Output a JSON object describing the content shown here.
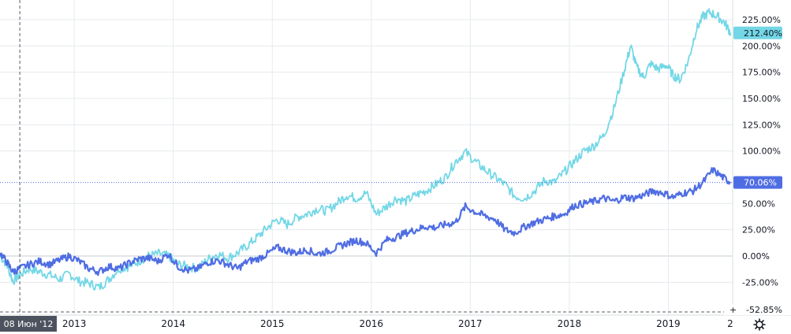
{
  "chart_data": {
    "type": "line",
    "y_unit": "%",
    "ylim": [
      -52.85,
      237
    ],
    "y_ticks": [
      {
        "value": 225,
        "label": "225.00%"
      },
      {
        "value": 200,
        "label": "200.00%"
      },
      {
        "value": 175,
        "label": "175.00%"
      },
      {
        "value": 150,
        "label": "150.00%"
      },
      {
        "value": 125,
        "label": "125.00%"
      },
      {
        "value": 100,
        "label": "100.00%"
      },
      {
        "value": 50,
        "label": "50.00%"
      },
      {
        "value": 25,
        "label": "25.00%"
      },
      {
        "value": 0,
        "label": "0.00%"
      },
      {
        "value": -25,
        "label": "-25.00%"
      }
    ],
    "x_ticks": [
      {
        "value": 2013.0,
        "label": "2013"
      },
      {
        "value": 2014.0,
        "label": "2014"
      },
      {
        "value": 2015.0,
        "label": "2015"
      },
      {
        "value": 2016.0,
        "label": "2016"
      },
      {
        "value": 2017.0,
        "label": "2017"
      },
      {
        "value": 2018.0,
        "label": "2018"
      },
      {
        "value": 2019.0,
        "label": "2019"
      }
    ],
    "xlim": [
      2012.25,
      2019.65
    ],
    "grid": true,
    "series": [
      {
        "color": "#73d7e6",
        "last_label": "212.40%",
        "last_value": 212.4,
        "points": [
          [
            2012.25,
            0
          ],
          [
            2012.32,
            -8
          ],
          [
            2012.38,
            -24
          ],
          [
            2012.45,
            -18
          ],
          [
            2012.55,
            -12
          ],
          [
            2012.65,
            -15
          ],
          [
            2012.75,
            -18
          ],
          [
            2012.85,
            -22
          ],
          [
            2012.95,
            -17
          ],
          [
            2013.05,
            -24
          ],
          [
            2013.15,
            -26
          ],
          [
            2013.25,
            -30
          ],
          [
            2013.35,
            -22
          ],
          [
            2013.45,
            -12
          ],
          [
            2013.55,
            -10
          ],
          [
            2013.65,
            -5
          ],
          [
            2013.75,
            0
          ],
          [
            2013.85,
            2
          ],
          [
            2013.95,
            0
          ],
          [
            2014.05,
            -8
          ],
          [
            2014.15,
            -10
          ],
          [
            2014.25,
            -12
          ],
          [
            2014.35,
            -3
          ],
          [
            2014.45,
            2
          ],
          [
            2014.55,
            -2
          ],
          [
            2014.65,
            3
          ],
          [
            2014.75,
            10
          ],
          [
            2014.85,
            18
          ],
          [
            2014.95,
            27
          ],
          [
            2015.05,
            35
          ],
          [
            2015.15,
            30
          ],
          [
            2015.25,
            37
          ],
          [
            2015.35,
            40
          ],
          [
            2015.45,
            45
          ],
          [
            2015.55,
            43
          ],
          [
            2015.65,
            50
          ],
          [
            2015.75,
            58
          ],
          [
            2015.85,
            55
          ],
          [
            2015.95,
            60
          ],
          [
            2016.05,
            40
          ],
          [
            2016.15,
            47
          ],
          [
            2016.25,
            55
          ],
          [
            2016.35,
            52
          ],
          [
            2016.45,
            58
          ],
          [
            2016.55,
            62
          ],
          [
            2016.65,
            68
          ],
          [
            2016.75,
            75
          ],
          [
            2016.85,
            90
          ],
          [
            2016.95,
            99
          ],
          [
            2017.05,
            90
          ],
          [
            2017.15,
            82
          ],
          [
            2017.25,
            75
          ],
          [
            2017.35,
            68
          ],
          [
            2017.45,
            57
          ],
          [
            2017.55,
            55
          ],
          [
            2017.65,
            62
          ],
          [
            2017.75,
            72
          ],
          [
            2017.85,
            70
          ],
          [
            2017.95,
            80
          ],
          [
            2018.05,
            90
          ],
          [
            2018.15,
            100
          ],
          [
            2018.25,
            105
          ],
          [
            2018.35,
            115
          ],
          [
            2018.45,
            140
          ],
          [
            2018.55,
            175
          ],
          [
            2018.62,
            200
          ],
          [
            2018.68,
            180
          ],
          [
            2018.75,
            170
          ],
          [
            2018.82,
            183
          ],
          [
            2018.9,
            178
          ],
          [
            2018.98,
            182
          ],
          [
            2019.05,
            172
          ],
          [
            2019.12,
            168
          ],
          [
            2019.2,
            185
          ],
          [
            2019.28,
            215
          ],
          [
            2019.35,
            228
          ],
          [
            2019.42,
            232
          ],
          [
            2019.5,
            228
          ],
          [
            2019.57,
            222
          ],
          [
            2019.63,
            212.4
          ]
        ]
      },
      {
        "color": "#4f6de3",
        "last_label": "70.06%",
        "last_value": 70.06,
        "points": [
          [
            2012.25,
            3
          ],
          [
            2012.32,
            -6
          ],
          [
            2012.38,
            -15
          ],
          [
            2012.45,
            -12
          ],
          [
            2012.55,
            -8
          ],
          [
            2012.65,
            -5
          ],
          [
            2012.75,
            -8
          ],
          [
            2012.85,
            -4
          ],
          [
            2012.95,
            0
          ],
          [
            2013.05,
            -5
          ],
          [
            2013.15,
            -12
          ],
          [
            2013.25,
            -15
          ],
          [
            2013.35,
            -10
          ],
          [
            2013.45,
            -12
          ],
          [
            2013.55,
            -7
          ],
          [
            2013.65,
            -3
          ],
          [
            2013.75,
            -2
          ],
          [
            2013.85,
            -5
          ],
          [
            2013.95,
            2
          ],
          [
            2014.05,
            -10
          ],
          [
            2014.15,
            -14
          ],
          [
            2014.25,
            -12
          ],
          [
            2014.35,
            -6
          ],
          [
            2014.45,
            -4
          ],
          [
            2014.55,
            -8
          ],
          [
            2014.65,
            -12
          ],
          [
            2014.75,
            -5
          ],
          [
            2014.85,
            -3
          ],
          [
            2014.95,
            2
          ],
          [
            2015.05,
            8
          ],
          [
            2015.15,
            5
          ],
          [
            2015.25,
            3
          ],
          [
            2015.35,
            6
          ],
          [
            2015.45,
            2
          ],
          [
            2015.55,
            4
          ],
          [
            2015.65,
            8
          ],
          [
            2015.75,
            12
          ],
          [
            2015.85,
            15
          ],
          [
            2015.95,
            12
          ],
          [
            2016.05,
            3
          ],
          [
            2016.15,
            15
          ],
          [
            2016.25,
            18
          ],
          [
            2016.35,
            22
          ],
          [
            2016.45,
            25
          ],
          [
            2016.55,
            28
          ],
          [
            2016.65,
            27
          ],
          [
            2016.75,
            30
          ],
          [
            2016.85,
            32
          ],
          [
            2016.95,
            47
          ],
          [
            2017.05,
            42
          ],
          [
            2017.15,
            38
          ],
          [
            2017.25,
            35
          ],
          [
            2017.35,
            25
          ],
          [
            2017.45,
            22
          ],
          [
            2017.55,
            28
          ],
          [
            2017.65,
            32
          ],
          [
            2017.75,
            35
          ],
          [
            2017.85,
            38
          ],
          [
            2017.95,
            40
          ],
          [
            2018.05,
            48
          ],
          [
            2018.15,
            50
          ],
          [
            2018.25,
            52
          ],
          [
            2018.35,
            55
          ],
          [
            2018.45,
            52
          ],
          [
            2018.55,
            56
          ],
          [
            2018.65,
            55
          ],
          [
            2018.75,
            58
          ],
          [
            2018.85,
            62
          ],
          [
            2018.95,
            60
          ],
          [
            2019.05,
            56
          ],
          [
            2019.15,
            60
          ],
          [
            2019.25,
            62
          ],
          [
            2019.35,
            70
          ],
          [
            2019.45,
            82
          ],
          [
            2019.55,
            75
          ],
          [
            2019.63,
            70.06
          ]
        ]
      }
    ],
    "bottom_badge": {
      "label": "-52.85%",
      "value": -52.85
    },
    "crosshair": {
      "label": "08 Июн '12",
      "x": 2012.45
    },
    "partial_x_label": "2"
  }
}
